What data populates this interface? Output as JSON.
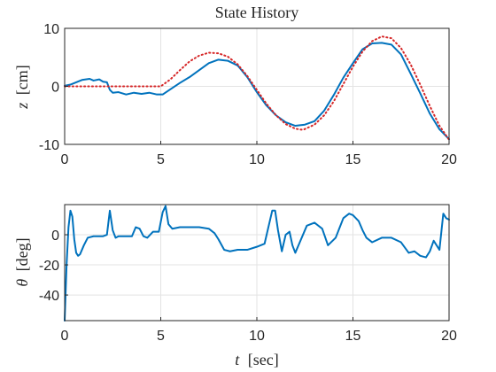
{
  "chart_data": [
    {
      "type": "line",
      "title": "State History",
      "xlabel": "",
      "ylabel_symbol": "z",
      "ylabel_unit": "[cm]",
      "xlim": [
        0,
        20
      ],
      "ylim": [
        -10,
        10
      ],
      "xticks": [
        0,
        5,
        10,
        15,
        20
      ],
      "yticks": [
        -10,
        0,
        10
      ],
      "xtick_labels": [
        "0",
        "5",
        "10",
        "15",
        "20"
      ],
      "ytick_labels": [
        "-10",
        "0",
        "10"
      ],
      "grid": true,
      "series": [
        {
          "role": "measured",
          "color": "#0072BD",
          "style": "solid",
          "x": [
            0,
            0.3,
            0.6,
            0.9,
            1.1,
            1.3,
            1.5,
            1.8,
            2.0,
            2.2,
            2.35,
            2.5,
            2.8,
            3.2,
            3.6,
            4.0,
            4.4,
            4.8,
            5.1,
            5.5,
            6.0,
            6.5,
            7.0,
            7.5,
            8.0,
            8.5,
            9.0,
            9.5,
            10.0,
            10.5,
            11.0,
            11.5,
            12.0,
            12.5,
            13.0,
            13.5,
            14.0,
            14.5,
            15.0,
            15.5,
            16.0,
            16.5,
            17.0,
            17.5,
            18.0,
            18.5,
            19.0,
            19.5,
            20.0
          ],
          "y": [
            0.1,
            0.3,
            0.7,
            1.1,
            1.2,
            1.3,
            1.0,
            1.2,
            0.8,
            0.7,
            -0.6,
            -1.1,
            -1.0,
            -1.4,
            -1.1,
            -1.3,
            -1.1,
            -1.4,
            -1.4,
            -0.5,
            0.6,
            1.6,
            2.8,
            4.0,
            4.6,
            4.4,
            3.6,
            1.6,
            -1.0,
            -3.3,
            -5.0,
            -6.2,
            -6.8,
            -6.6,
            -6.0,
            -4.2,
            -1.5,
            1.5,
            4.0,
            6.4,
            7.4,
            7.5,
            7.2,
            5.5,
            2.2,
            -1.2,
            -4.7,
            -7.4,
            -9.1
          ]
        },
        {
          "role": "reference",
          "color": "#D62728",
          "style": "dotted",
          "x": [
            0,
            5,
            5.5,
            6,
            6.5,
            7,
            7.5,
            8,
            8.5,
            9,
            9.5,
            10,
            10.5,
            11,
            11.5,
            12,
            12.4,
            13,
            13.5,
            14,
            14.5,
            15,
            15.5,
            16,
            16.5,
            17,
            17.5,
            18,
            18.5,
            19,
            19.5,
            20
          ],
          "y": [
            0,
            0,
            1.2,
            2.8,
            4.3,
            5.3,
            5.8,
            5.7,
            5.1,
            3.8,
            1.8,
            -0.6,
            -3.0,
            -5.0,
            -6.5,
            -7.3,
            -7.5,
            -6.6,
            -5.0,
            -2.6,
            0.4,
            3.4,
            6.0,
            7.8,
            8.6,
            8.3,
            6.6,
            3.8,
            0.3,
            -3.4,
            -6.8,
            -9.2
          ]
        }
      ]
    },
    {
      "type": "line",
      "title": "",
      "xlabel_symbol": "t",
      "xlabel_unit": "[sec]",
      "ylabel_symbol": "θ",
      "ylabel_unit": "[deg]",
      "xlim": [
        0,
        20
      ],
      "ylim": [
        -57,
        20
      ],
      "xticks": [
        0,
        5,
        10,
        15,
        20
      ],
      "yticks": [
        -40,
        -20,
        0
      ],
      "xtick_labels": [
        "0",
        "5",
        "10",
        "15",
        "20"
      ],
      "ytick_labels": [
        "-40",
        "-20",
        "0"
      ],
      "grid": true,
      "series": [
        {
          "role": "measured",
          "color": "#0072BD",
          "style": "solid",
          "x": [
            0,
            0.1,
            0.2,
            0.3,
            0.4,
            0.5,
            0.6,
            0.7,
            0.8,
            1.0,
            1.2,
            1.5,
            2.0,
            2.2,
            2.35,
            2.5,
            2.65,
            2.8,
            3.0,
            3.5,
            3.7,
            3.9,
            4.1,
            4.3,
            4.6,
            4.9,
            5.1,
            5.25,
            5.4,
            5.6,
            6.0,
            7.0,
            7.5,
            7.8,
            8.0,
            8.3,
            8.6,
            9.0,
            9.5,
            10.0,
            10.4,
            10.6,
            10.8,
            10.95,
            11.1,
            11.3,
            11.5,
            11.7,
            11.85,
            12.0,
            12.2,
            12.6,
            13.0,
            13.4,
            13.7,
            14.1,
            14.5,
            14.8,
            15.0,
            15.3,
            15.5,
            15.7,
            16.0,
            16.5,
            17.0,
            17.5,
            17.9,
            18.2,
            18.5,
            18.8,
            19.0,
            19.2,
            19.35,
            19.5,
            19.7,
            19.85,
            20.0
          ],
          "y": [
            -57,
            -20,
            5,
            16,
            12,
            -3,
            -12,
            -14,
            -13,
            -7,
            -2,
            -1,
            -1,
            0,
            16,
            3,
            -2,
            -1,
            -1,
            -1,
            5,
            4,
            -1,
            -2,
            2,
            2,
            15,
            19,
            7,
            4,
            5,
            5,
            4,
            1,
            -3,
            -10,
            -11,
            -10,
            -10,
            -8,
            -6,
            5,
            16,
            16,
            3,
            -11,
            0,
            2,
            -7,
            -12,
            -6,
            6,
            8,
            4,
            -7,
            -2,
            11,
            14,
            13,
            9,
            3,
            -2,
            -5,
            -2,
            -2,
            -5,
            -12,
            -11,
            -14,
            -15,
            -11,
            -4,
            -7,
            -10,
            14,
            11,
            10
          ]
        }
      ]
    }
  ]
}
